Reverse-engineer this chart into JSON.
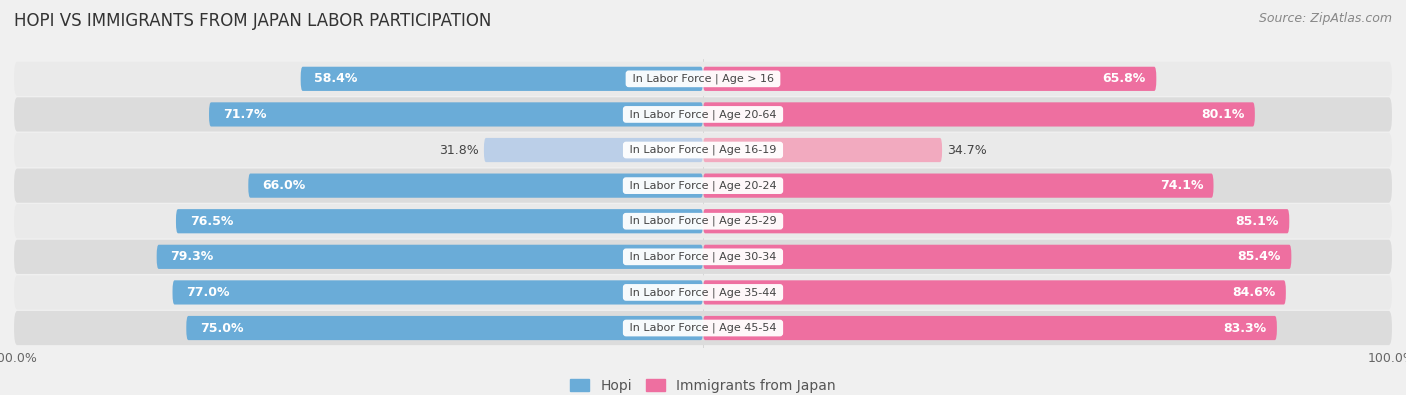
{
  "title": "HOPI VS IMMIGRANTS FROM JAPAN LABOR PARTICIPATION",
  "source": "Source: ZipAtlas.com",
  "categories": [
    "In Labor Force | Age > 16",
    "In Labor Force | Age 20-64",
    "In Labor Force | Age 16-19",
    "In Labor Force | Age 20-24",
    "In Labor Force | Age 25-29",
    "In Labor Force | Age 30-34",
    "In Labor Force | Age 35-44",
    "In Labor Force | Age 45-54"
  ],
  "hopi_values": [
    58.4,
    71.7,
    31.8,
    66.0,
    76.5,
    79.3,
    77.0,
    75.0
  ],
  "japan_values": [
    65.8,
    80.1,
    34.7,
    74.1,
    85.1,
    85.4,
    84.6,
    83.3
  ],
  "hopi_color": "#6AACD8",
  "hopi_color_light": "#BBCFE8",
  "japan_color": "#EE6FA0",
  "japan_color_light": "#F2AABF",
  "row_bg_even": "#EAEAEA",
  "row_bg_odd": "#DCDCDC",
  "background_color": "#F0F0F0",
  "bar_height": 0.68,
  "label_fontsize": 9.0,
  "title_fontsize": 12,
  "legend_fontsize": 10,
  "cat_fontsize": 8.0
}
